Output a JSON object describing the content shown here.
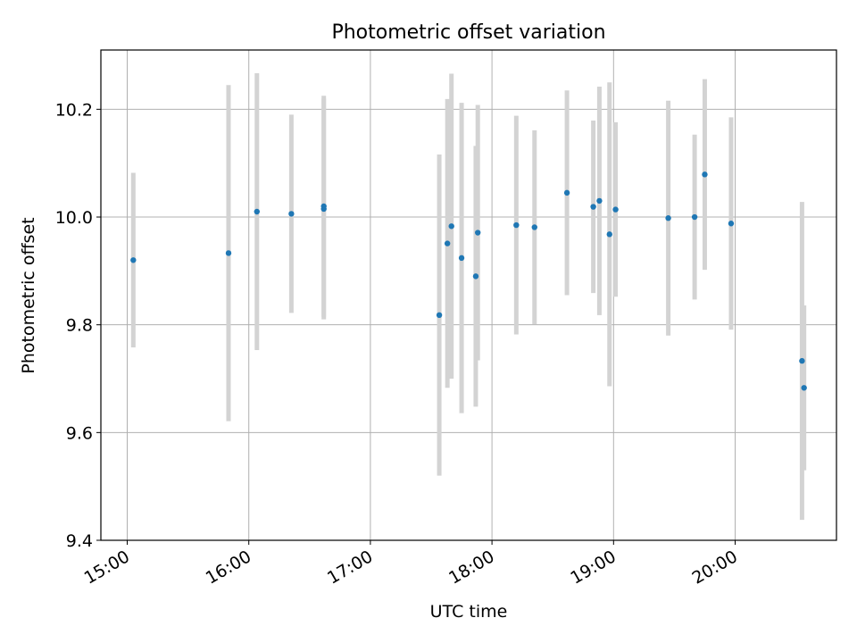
{
  "chart_data": {
    "type": "scatter",
    "title": "Photometric offset variation",
    "xlabel": "UTC time",
    "ylabel": "Photometric offset",
    "xlim": [
      "14:47",
      "20:50"
    ],
    "ylim": [
      9.4,
      10.31
    ],
    "grid": true,
    "x_ticks": [
      "15:00",
      "16:00",
      "17:00",
      "18:00",
      "19:00",
      "20:00"
    ],
    "y_ticks": [
      9.4,
      9.6,
      9.8,
      10.0,
      10.2
    ],
    "y_tick_labels": [
      "9.4",
      "9.6",
      "9.8",
      "10.0",
      "10.2"
    ],
    "colors": {
      "point": "#1f77b4",
      "errorbar": "#d3d3d3",
      "grid": "#b0b0b0"
    },
    "series": [
      {
        "x": [
          "15:03",
          "15:50",
          "16:04",
          "16:21",
          "16:37",
          "16:37",
          "17:34",
          "17:38",
          "17:40",
          "17:45",
          "17:52",
          "17:53",
          "18:12",
          "18:21",
          "18:37",
          "18:50",
          "18:53",
          "18:58",
          "19:01",
          "19:27",
          "19:40",
          "19:45",
          "19:58",
          "20:33",
          "20:34"
        ],
        "y": [
          9.92,
          9.933,
          10.01,
          10.006,
          10.015,
          10.02,
          9.818,
          9.951,
          9.983,
          9.924,
          9.89,
          9.971,
          9.985,
          9.981,
          10.045,
          10.019,
          10.03,
          9.968,
          10.014,
          9.998,
          10.0,
          10.079,
          9.988,
          9.733,
          9.683
        ],
        "yerr": [
          0.162,
          0.312,
          0.257,
          0.184,
          0.205,
          0.205,
          0.298,
          0.268,
          0.283,
          0.288,
          0.242,
          0.237,
          0.203,
          0.18,
          0.19,
          0.16,
          0.212,
          0.282,
          0.162,
          0.218,
          0.153,
          0.177,
          0.197,
          0.295,
          0.153
        ]
      }
    ]
  }
}
